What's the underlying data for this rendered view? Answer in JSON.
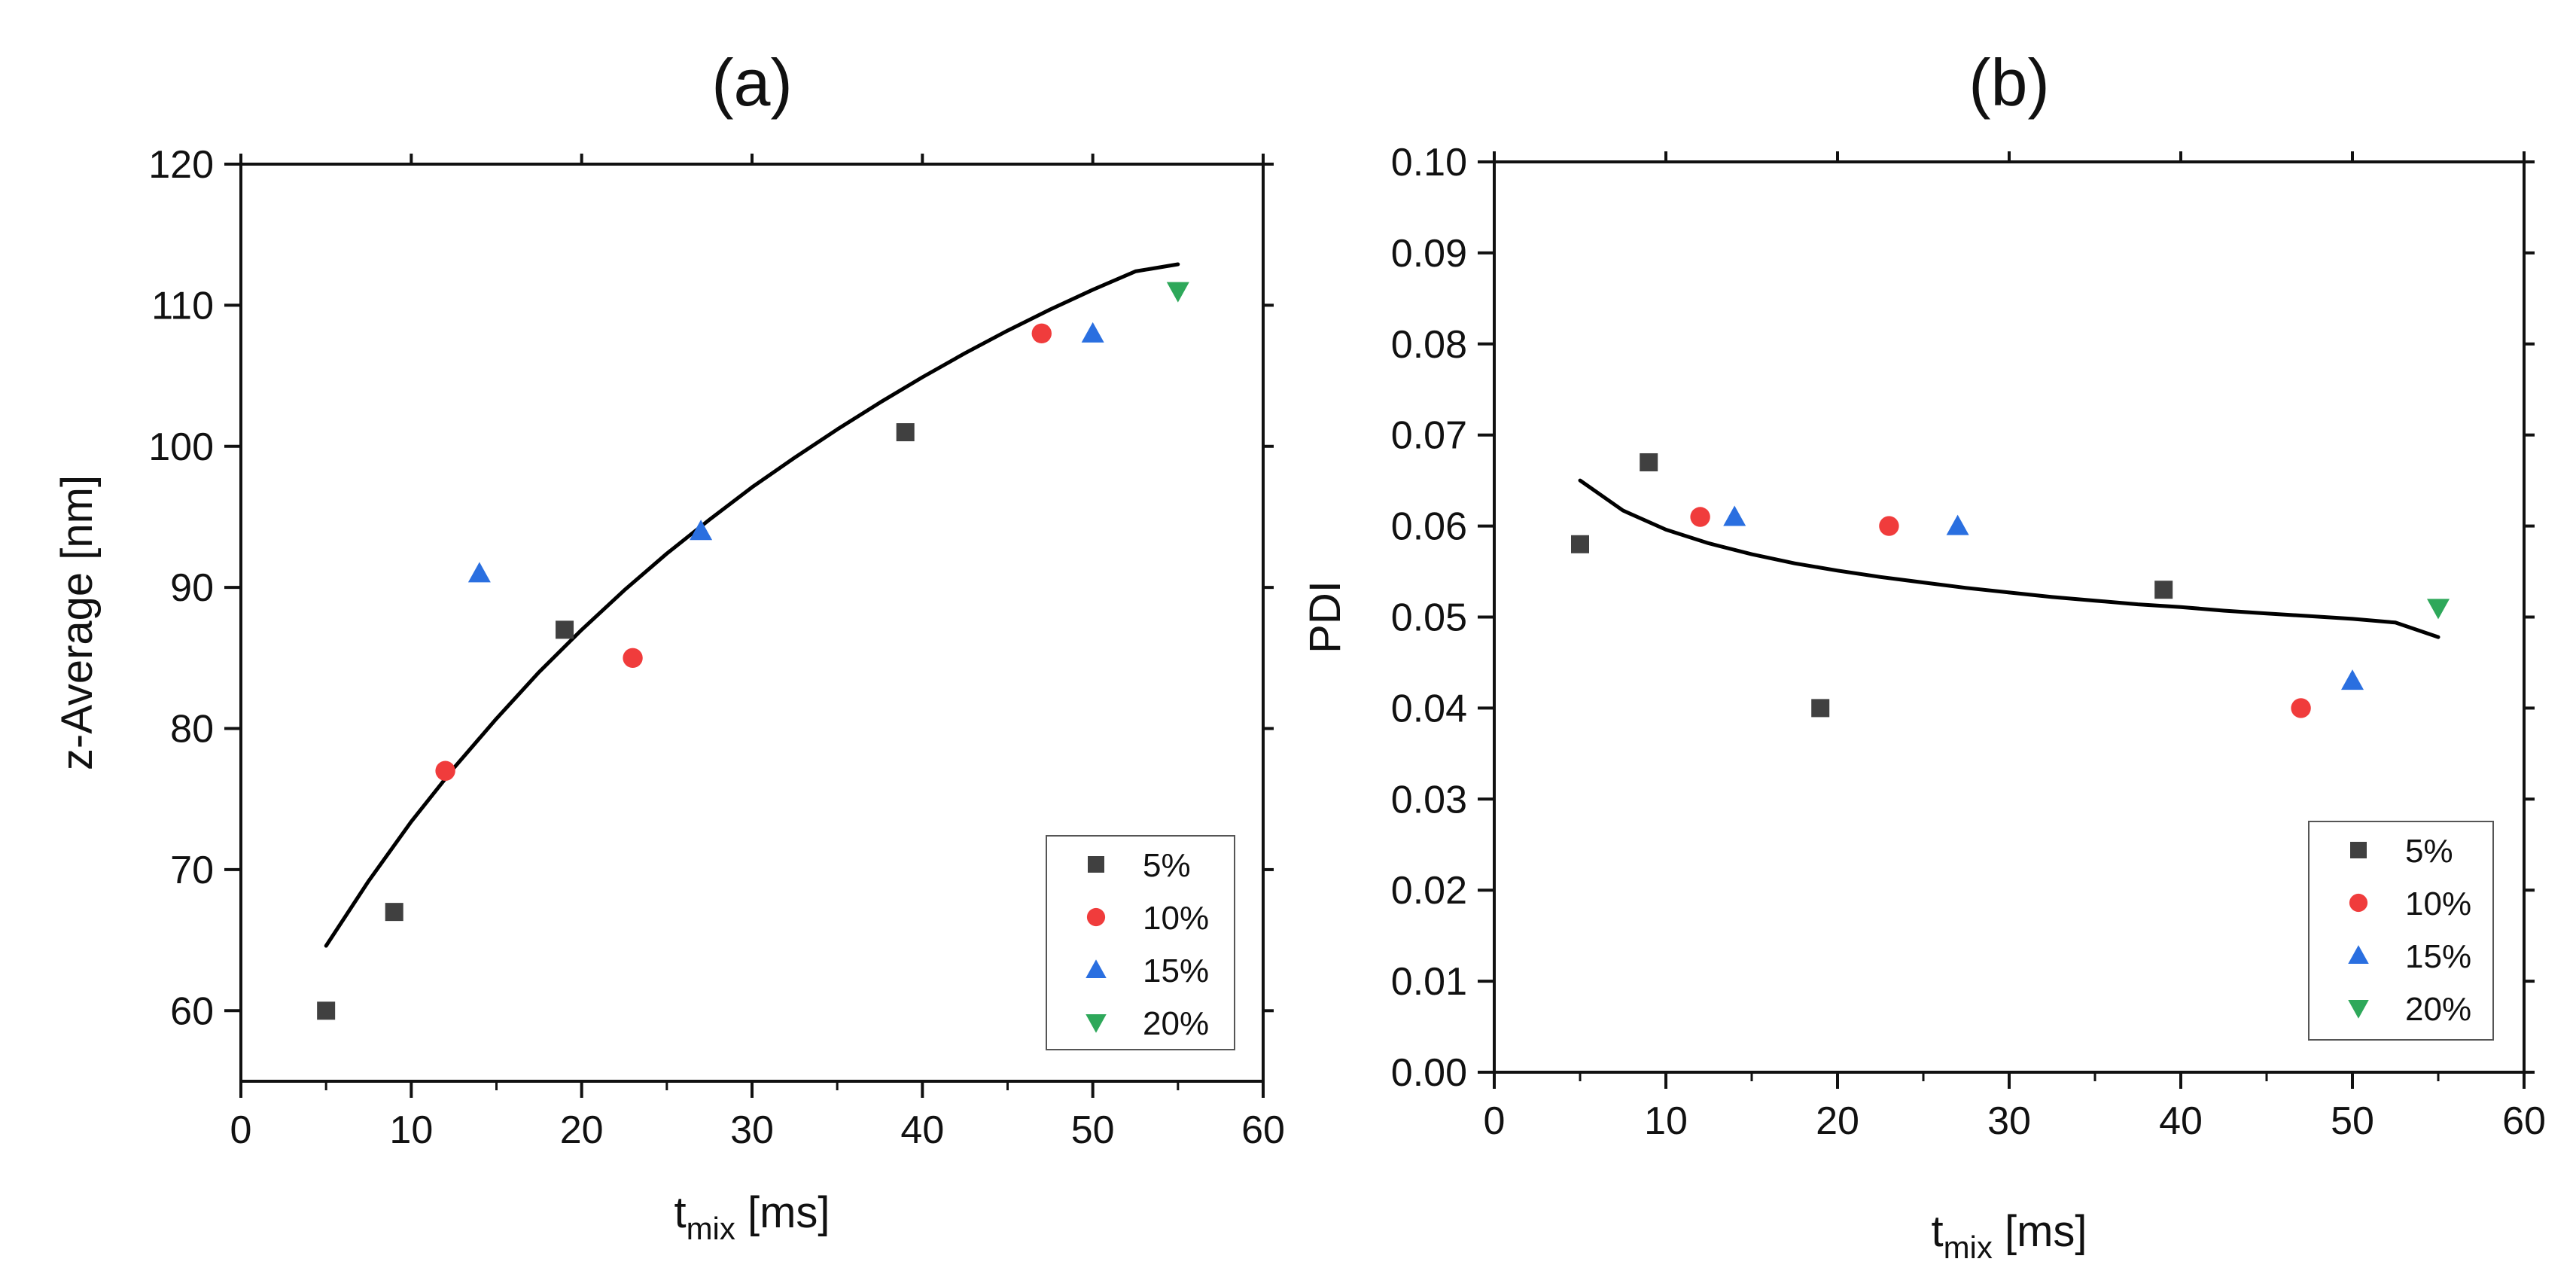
{
  "chart_data": [
    {
      "type": "scatter",
      "panel": "(a)",
      "xlabel": {
        "main": "t",
        "sub": "mix",
        "unit": " [ms]"
      },
      "ylabel": "z-Average [nm]",
      "xlim": [
        0,
        60
      ],
      "ylim": [
        55,
        120
      ],
      "xticks": [
        0,
        10,
        20,
        30,
        40,
        50,
        60
      ],
      "yticks": [
        60,
        70,
        80,
        90,
        100,
        110,
        120
      ],
      "y_decimals": 0,
      "grid": false,
      "legend_position": "bottom-right",
      "series": [
        {
          "name": "5%",
          "marker": "square",
          "color": "#404040",
          "x": [
            5,
            9,
            19,
            39
          ],
          "y": [
            60,
            67,
            87,
            101
          ]
        },
        {
          "name": "10%",
          "marker": "circle",
          "color": "#f03c3c",
          "x": [
            12,
            23,
            47
          ],
          "y": [
            77,
            85,
            108
          ]
        },
        {
          "name": "15%",
          "marker": "triangle-up",
          "color": "#2a6fe0",
          "x": [
            14,
            27,
            50
          ],
          "y": [
            91,
            94,
            108
          ]
        },
        {
          "name": "20%",
          "marker": "triangle-down",
          "color": "#2ea85a",
          "x": [
            55
          ],
          "y": [
            111
          ]
        }
      ],
      "fit": {
        "color": "#000000",
        "x": [
          5,
          7.5,
          10,
          12.5,
          15,
          17.5,
          20,
          22.5,
          25,
          27.5,
          30,
          32.5,
          35,
          37.5,
          40,
          42.5,
          45,
          47.5,
          50,
          52.5,
          55
        ],
        "y": [
          64.6,
          69.2,
          73.4,
          77.2,
          80.7,
          84.0,
          87.0,
          89.8,
          92.4,
          94.8,
          97.1,
          99.2,
          101.2,
          103.1,
          104.9,
          106.6,
          108.2,
          109.7,
          111.1,
          112.4,
          112.9
        ]
      }
    },
    {
      "type": "scatter",
      "panel": "(b)",
      "xlabel": {
        "main": "t",
        "sub": "mix",
        "unit": " [ms]"
      },
      "ylabel": "PDI",
      "xlim": [
        0,
        60
      ],
      "ylim": [
        0,
        0.1
      ],
      "xticks": [
        0,
        10,
        20,
        30,
        40,
        50,
        60
      ],
      "yticks": [
        0.0,
        0.01,
        0.02,
        0.03,
        0.04,
        0.05,
        0.06,
        0.07,
        0.08,
        0.09,
        0.1
      ],
      "y_decimals": 2,
      "grid": false,
      "legend_position": "bottom-right",
      "series": [
        {
          "name": "5%",
          "marker": "square",
          "color": "#404040",
          "x": [
            5,
            9,
            19,
            39
          ],
          "y": [
            0.058,
            0.067,
            0.04,
            0.053
          ]
        },
        {
          "name": "10%",
          "marker": "circle",
          "color": "#f03c3c",
          "x": [
            12,
            23,
            47
          ],
          "y": [
            0.061,
            0.06,
            0.04
          ]
        },
        {
          "name": "15%",
          "marker": "triangle-up",
          "color": "#2a6fe0",
          "x": [
            14,
            27,
            50
          ],
          "y": [
            0.061,
            0.06,
            0.043
          ]
        },
        {
          "name": "20%",
          "marker": "triangle-down",
          "color": "#2ea85a",
          "x": [
            55
          ],
          "y": [
            0.051
          ]
        }
      ],
      "fit": {
        "color": "#000000",
        "x": [
          5,
          7.5,
          10,
          12.5,
          15,
          17.5,
          20,
          22.5,
          25,
          27.5,
          30,
          32.5,
          35,
          37.5,
          40,
          42.5,
          45,
          47.5,
          50,
          52.5,
          55
        ],
        "y": [
          0.065,
          0.0617,
          0.0596,
          0.0581,
          0.0569,
          0.0559,
          0.0551,
          0.0544,
          0.0538,
          0.0532,
          0.0527,
          0.0522,
          0.0518,
          0.0514,
          0.0511,
          0.0507,
          0.0504,
          0.0501,
          0.0498,
          0.0494,
          0.0478
        ]
      }
    }
  ]
}
